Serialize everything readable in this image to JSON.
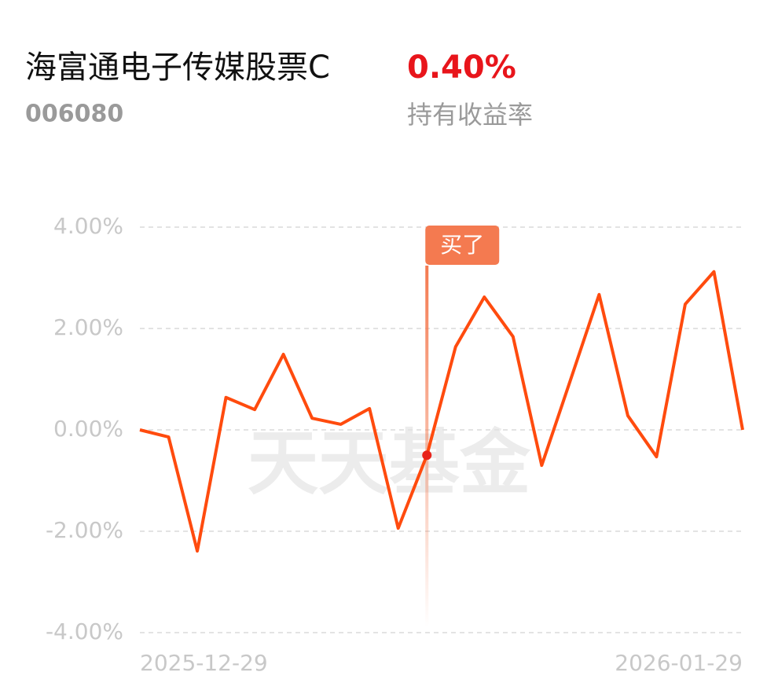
{
  "header": {
    "name": "海富通电子传媒股票C",
    "code": "006080",
    "return_label": "0.40%",
    "return_caption": "持有收益率"
  },
  "chart_data": {
    "type": "line",
    "watermark": "天天基金",
    "categories": [
      "2025-12-29",
      null,
      null,
      null,
      null,
      null,
      null,
      null,
      null,
      null,
      null,
      null,
      null,
      null,
      null,
      null,
      null,
      null,
      null,
      null,
      null,
      "2026-01-29"
    ],
    "series": [
      {
        "color": "#ff4b0e",
        "values": [
          0.0,
          -0.14,
          -2.39,
          0.64,
          0.4,
          1.49,
          0.23,
          0.11,
          0.42,
          -1.94,
          -0.5,
          1.64,
          2.62,
          1.84,
          -0.7,
          0.98,
          2.67,
          0.28,
          -0.53,
          2.48,
          3.12,
          0.0
        ]
      }
    ],
    "annotations": [
      {
        "text": "买了",
        "at": 10
      }
    ],
    "ylim": [
      -4,
      4
    ],
    "yticks": [
      {
        "value": 4,
        "label": "4.00%"
      },
      {
        "value": 2,
        "label": "2.00%"
      },
      {
        "value": 0,
        "label": "0.00%"
      },
      {
        "value": -2,
        "label": "-2.00%"
      },
      {
        "value": -4,
        "label": "-4.00%"
      }
    ],
    "grid": true
  }
}
